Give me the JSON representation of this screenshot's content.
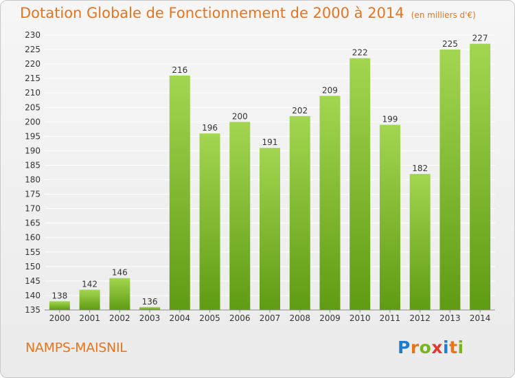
{
  "title": "Dotation Globale de Fonctionnement de 2000 à 2014",
  "unit": "(en milliers d'€)",
  "commune": "NAMPS-MAISNIL",
  "logo": {
    "text": "Proxiti",
    "letters": [
      {
        "ch": "P",
        "color": "#1e7fd1"
      },
      {
        "ch": "r",
        "color": "#e8741c"
      },
      {
        "ch": "o",
        "color": "#7ab51d"
      },
      {
        "ch": "x",
        "color": "#e23b2e"
      },
      {
        "ch": "i",
        "color": "#1e7fd1"
      },
      {
        "ch": "t",
        "color": "#e8741c"
      },
      {
        "ch": "i",
        "color": "#7ab51d"
      }
    ]
  },
  "colors": {
    "accent": "#e8741c",
    "bar_top": "#9fd24a",
    "bar_bottom": "#5e9a12",
    "grid": "#ffffff"
  },
  "chart_data": {
    "type": "bar",
    "categories": [
      "2000",
      "2001",
      "2002",
      "2003",
      "2004",
      "2005",
      "2006",
      "2007",
      "2008",
      "2009",
      "2010",
      "2011",
      "2012",
      "2013",
      "2014"
    ],
    "values": [
      138,
      142,
      146,
      136,
      216,
      196,
      200,
      191,
      202,
      209,
      222,
      199,
      182,
      225,
      227
    ],
    "ylim": [
      135,
      230
    ],
    "ytick_step": 5,
    "grid": true,
    "title": "Dotation Globale de Fonctionnement de 2000 à 2014",
    "xlabel": "",
    "ylabel": ""
  }
}
